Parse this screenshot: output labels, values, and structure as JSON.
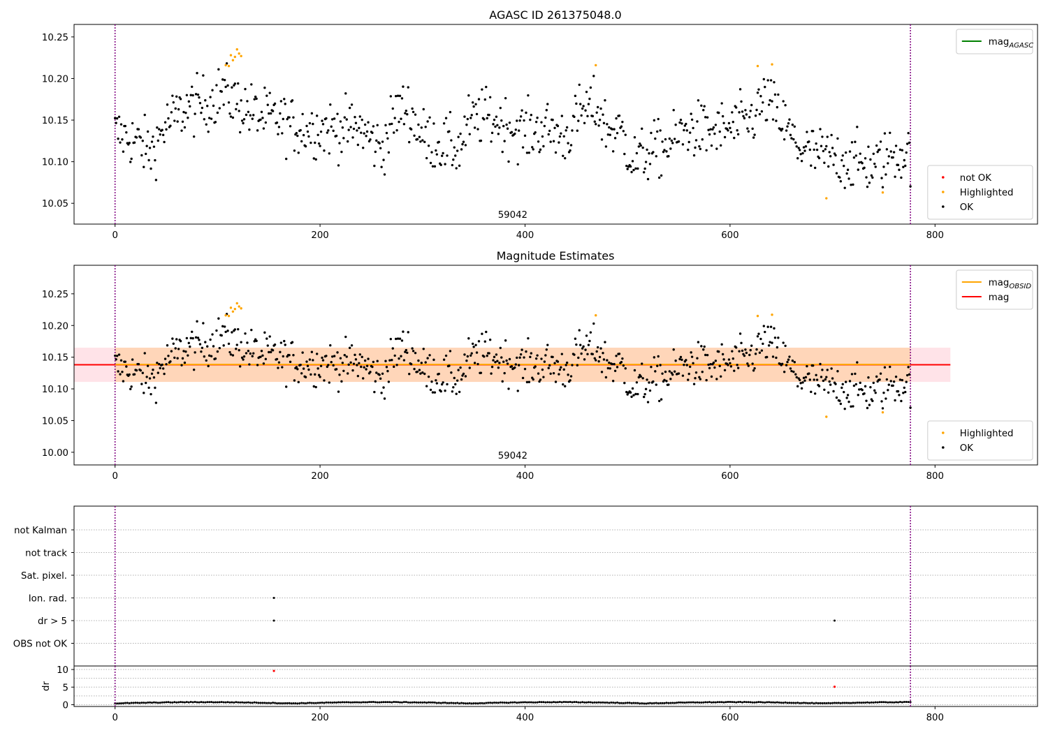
{
  "chart_data": [
    {
      "type": "scatter",
      "title": "AGASC ID 261375048.0",
      "xlim": [
        -40,
        900
      ],
      "ylim": [
        10.025,
        10.265
      ],
      "xticks": [
        0,
        200,
        400,
        600,
        800
      ],
      "yticks": [
        10.05,
        10.1,
        10.15,
        10.2,
        10.25
      ],
      "ytick_format": 2,
      "vlines": [
        0,
        776
      ],
      "annotation": {
        "text": "59042",
        "x": 388
      },
      "legends": [
        {
          "position": "top-right",
          "entries": [
            {
              "label": "mag",
              "sub": "AGASC",
              "marker": "line",
              "color": "#008000"
            }
          ]
        },
        {
          "position": "bottom-right",
          "entries": [
            {
              "label": "not OK",
              "marker": "dot",
              "color": "#ff0000"
            },
            {
              "label": "Highlighted",
              "marker": "dot",
              "color": "#ffa500"
            },
            {
              "label": "OK",
              "marker": "dot",
              "color": "#000000"
            }
          ]
        }
      ]
    },
    {
      "type": "scatter",
      "title": "Magnitude Estimates",
      "xlim": [
        -40,
        900
      ],
      "ylim": [
        9.98,
        10.295
      ],
      "xticks": [
        0,
        200,
        400,
        600,
        800
      ],
      "yticks": [
        10.0,
        10.05,
        10.1,
        10.15,
        10.2,
        10.25
      ],
      "ytick_format": 2,
      "vlines": [
        0,
        776
      ],
      "annotation": {
        "text": "59042",
        "x": 388
      },
      "bands": [
        {
          "x": [
            -40,
            815
          ],
          "y": [
            10.111,
            10.165
          ],
          "color": "#ffc0cb",
          "opacity": 0.45
        },
        {
          "x": [
            0,
            776
          ],
          "y": [
            10.111,
            10.165
          ],
          "color": "#ffa500",
          "opacity": 0.2
        }
      ],
      "hlines": [
        {
          "y": 10.138,
          "x": [
            -40,
            815
          ],
          "color": "#ff0000",
          "width": 2
        },
        {
          "y": 10.1385,
          "x": [
            0,
            776
          ],
          "color": "#ffa500",
          "width": 2
        }
      ],
      "legends": [
        {
          "position": "top-right",
          "entries": [
            {
              "label": "mag",
              "sub": "OBSID",
              "marker": "line",
              "color": "#ffa500"
            },
            {
              "label": "mag",
              "marker": "line",
              "color": "#ff0000"
            }
          ]
        },
        {
          "position": "bottom-right",
          "entries": [
            {
              "label": "Highlighted",
              "marker": "dot",
              "color": "#ffa500"
            },
            {
              "label": "OK",
              "marker": "dot",
              "color": "#000000"
            }
          ]
        }
      ]
    },
    {
      "type": "scatter",
      "title": "",
      "xlim": [
        -40,
        900
      ],
      "categories": [
        "not Kalman",
        "not track",
        "Sat. pixel.",
        "Ion. rad.",
        "dr > 5",
        "OBS not OK"
      ],
      "flag_points": [
        {
          "category": "Ion. rad.",
          "x": 155
        },
        {
          "category": "dr > 5",
          "x": 155
        },
        {
          "category": "dr > 5",
          "x": 702
        }
      ],
      "vlines": [
        0,
        776
      ]
    },
    {
      "type": "scatter",
      "title": "",
      "ylabel": "dr",
      "xlim": [
        -40,
        900
      ],
      "ylim": [
        -0.5,
        11
      ],
      "xticks": [
        0,
        200,
        400,
        600,
        800
      ],
      "yticks": [
        0,
        5,
        10
      ],
      "gridlines": [
        0,
        2.5,
        5,
        7.5,
        10
      ],
      "vlines": [
        0,
        776
      ],
      "highlight_points": [
        {
          "x": 155,
          "y": 9.6,
          "color": "#ff0000"
        },
        {
          "x": 702,
          "y": 5.1,
          "color": "#ff0000"
        }
      ]
    }
  ],
  "series_style": {
    "ok_color": "#000000",
    "highlight_color": "#ffa500",
    "vline_color": "#800080"
  }
}
